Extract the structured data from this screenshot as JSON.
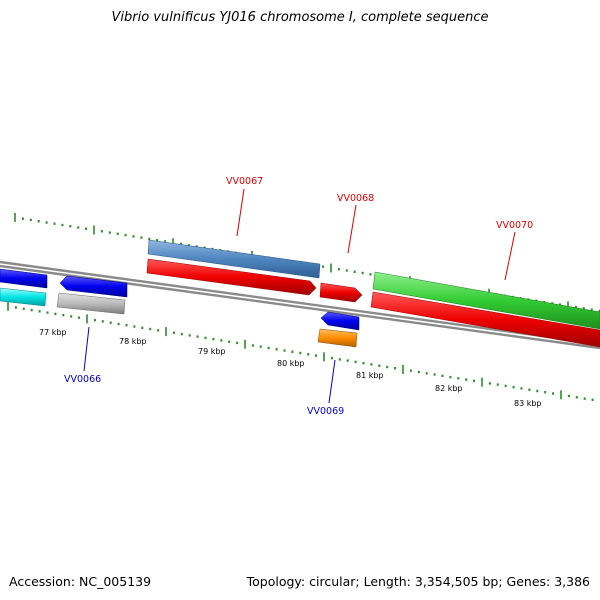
{
  "title": "Vibrio vulnificus YJ016 chromosome I, complete sequence",
  "footer": {
    "accession": "Accession: NC_005139",
    "summary": "Topology: circular; Length: 3,354,505 bp; Genes: 3,386"
  },
  "colors": {
    "backbone": "#8a8a8a",
    "tick": "#2e8b2e",
    "forward_label": "#dd0000",
    "reverse_label": "#0000cc",
    "red": "#ee0000",
    "blue": "#0000ee",
    "steelblue": "#4f86c0",
    "green": "#33cc33",
    "cyan": "#00e5e5",
    "gray": "#bbbbbb",
    "orange": "#ff8c00"
  },
  "ruler": {
    "unit_label_suffix": " kbp",
    "labels": [
      "77 kbp",
      "78 kbp",
      "79 kbp",
      "80 kbp",
      "81 kbp",
      "82 kbp",
      "83 kbp"
    ]
  },
  "gene_labels": [
    {
      "id": "VV0067",
      "strand": "forward"
    },
    {
      "id": "VV0068",
      "strand": "forward"
    },
    {
      "id": "VV0070",
      "strand": "forward"
    },
    {
      "id": "VV0066",
      "strand": "reverse"
    },
    {
      "id": "VV0069",
      "strand": "reverse"
    }
  ]
}
